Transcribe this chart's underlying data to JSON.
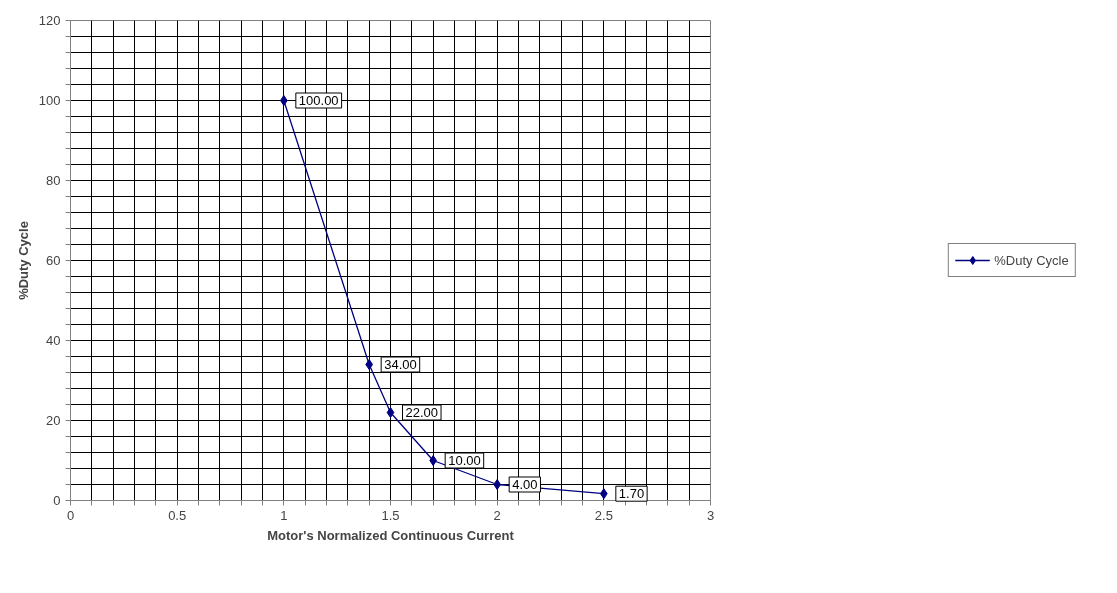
{
  "chart_data": {
    "type": "line",
    "xlabel": "Motor's Normalized Continuous Current",
    "ylabel": "%Duty Cycle",
    "x": [
      1,
      1.4,
      1.5,
      1.7,
      2,
      2.5
    ],
    "series": [
      {
        "name": "%Duty Cycle",
        "color": "#000080",
        "values": [
          100,
          34,
          22,
          10,
          4,
          1.7
        ],
        "value_labels": [
          "100.00",
          "34.00",
          "22.00",
          "10.00",
          "4.00",
          "1.70"
        ]
      }
    ],
    "xlim": [
      0,
      3
    ],
    "xticks": [
      0,
      {
        "value": 0.1,
        "label": null
      },
      {
        "value": 0.2,
        "label": null
      },
      {
        "value": 0.3,
        "label": null
      },
      {
        "value": 0.4,
        "label": null
      },
      0.5,
      {
        "value": 0.6,
        "label": null
      },
      {
        "value": 0.7,
        "label": null
      },
      {
        "value": 0.8,
        "label": null
      },
      {
        "value": 0.9,
        "label": null
      },
      1,
      {
        "value": 1.1,
        "label": null
      },
      {
        "value": 1.2,
        "label": null
      },
      {
        "value": 1.3,
        "label": null
      },
      {
        "value": 1.4,
        "label": null
      },
      1.5,
      {
        "value": 1.6,
        "label": null
      },
      {
        "value": 1.7,
        "label": null
      },
      {
        "value": 1.8,
        "label": null
      },
      {
        "value": 1.9,
        "label": null
      },
      2,
      {
        "value": 2.1,
        "label": null
      },
      {
        "value": 2.2,
        "label": null
      },
      {
        "value": 2.3,
        "label": null
      },
      {
        "value": 2.4,
        "label": null
      },
      2.5,
      {
        "value": 2.6,
        "label": null
      },
      {
        "value": 2.7,
        "label": null
      },
      {
        "value": 2.8,
        "label": null
      },
      {
        "value": 2.9,
        "label": null
      },
      3
    ],
    "ylim": [
      0,
      120
    ],
    "yticks": [
      0,
      {
        "value": 4,
        "label": null
      },
      {
        "value": 8,
        "label": null
      },
      {
        "value": 12,
        "label": null
      },
      {
        "value": 16,
        "label": null
      },
      20,
      {
        "value": 24,
        "label": null
      },
      {
        "value": 28,
        "label": null
      },
      {
        "value": 32,
        "label": null
      },
      {
        "value": 36,
        "label": null
      },
      40,
      {
        "value": 44,
        "label": null
      },
      {
        "value": 48,
        "label": null
      },
      {
        "value": 52,
        "label": null
      },
      {
        "value": 56,
        "label": null
      },
      60,
      {
        "value": 64,
        "label": null
      },
      {
        "value": 68,
        "label": null
      },
      {
        "value": 72,
        "label": null
      },
      {
        "value": 76,
        "label": null
      },
      80,
      {
        "value": 84,
        "label": null
      },
      {
        "value": 88,
        "label": null
      },
      {
        "value": 92,
        "label": null
      },
      {
        "value": 96,
        "label": null
      },
      100,
      {
        "value": 104,
        "label": null
      },
      {
        "value": 108,
        "label": null
      },
      {
        "value": 112,
        "label": null
      },
      {
        "value": 116,
        "label": null
      },
      120
    ],
    "grid": true,
    "legend": "right",
    "marker": "diamond",
    "line_style": "solid"
  }
}
